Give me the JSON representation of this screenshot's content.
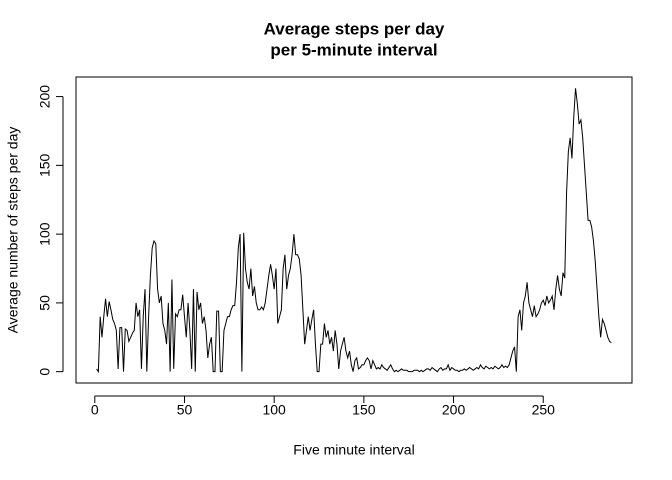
{
  "chart_data": {
    "type": "line",
    "title": [
      "Average steps per day",
      "per 5-minute interval"
    ],
    "x_label": "Five minute interval",
    "y_label": "Average number of steps per day",
    "xlim": [
      -10.48,
      299.48
    ],
    "ylim": [
      -8.24,
      214.24
    ],
    "xticks": [
      0,
      50,
      100,
      150,
      200,
      250
    ],
    "yticks": [
      0,
      50,
      100,
      150,
      200
    ],
    "x": [
      1,
      2,
      3,
      4,
      5,
      6,
      7,
      8,
      9,
      10,
      11,
      12,
      13,
      14,
      15,
      16,
      17,
      18,
      19,
      20,
      21,
      22,
      23,
      24,
      25,
      26,
      27,
      28,
      29,
      30,
      31,
      32,
      33,
      34,
      35,
      36,
      37,
      38,
      39,
      40,
      41,
      42,
      43,
      44,
      45,
      46,
      47,
      48,
      49,
      50,
      51,
      52,
      53,
      54,
      55,
      56,
      57,
      58,
      59,
      60,
      61,
      62,
      63,
      64,
      65,
      66,
      67,
      68,
      69,
      70,
      71,
      72,
      73,
      74,
      75,
      76,
      77,
      78,
      79,
      80,
      81,
      82,
      83,
      84,
      85,
      86,
      87,
      88,
      89,
      90,
      91,
      92,
      93,
      94,
      95,
      96,
      97,
      98,
      99,
      100,
      101,
      102,
      103,
      104,
      105,
      106,
      107,
      108,
      109,
      110,
      111,
      112,
      113,
      114,
      115,
      116,
      117,
      118,
      119,
      120,
      121,
      122,
      123,
      124,
      125,
      126,
      127,
      128,
      129,
      130,
      131,
      132,
      133,
      134,
      135,
      136,
      137,
      138,
      139,
      140,
      141,
      142,
      143,
      144,
      145,
      146,
      147,
      148,
      149,
      150,
      151,
      152,
      153,
      154,
      155,
      156,
      157,
      158,
      159,
      160,
      161,
      162,
      163,
      164,
      165,
      166,
      167,
      168,
      169,
      170,
      171,
      172,
      173,
      174,
      175,
      176,
      177,
      178,
      179,
      180,
      181,
      182,
      183,
      184,
      185,
      186,
      187,
      188,
      189,
      190,
      191,
      192,
      193,
      194,
      195,
      196,
      197,
      198,
      199,
      200,
      201,
      202,
      203,
      204,
      205,
      206,
      207,
      208,
      209,
      210,
      211,
      212,
      213,
      214,
      215,
      216,
      217,
      218,
      219,
      220,
      221,
      222,
      223,
      224,
      225,
      226,
      227,
      228,
      229,
      230,
      231,
      232,
      233,
      234,
      235,
      236,
      237,
      238,
      239,
      240,
      241,
      242,
      243,
      244,
      245,
      246,
      247,
      248,
      249,
      250,
      251,
      252,
      253,
      254,
      255,
      256,
      257,
      258,
      259,
      260,
      261,
      262,
      263,
      264,
      265,
      266,
      267,
      268,
      269,
      270,
      271,
      272,
      273,
      274,
      275,
      276,
      277,
      278,
      279,
      280,
      281,
      282,
      283,
      284,
      285,
      286,
      287,
      288
    ],
    "series": [
      {
        "color": "#000000",
        "values": [
          2,
          0,
          40,
          25,
          40,
          53,
          40,
          51,
          45,
          38,
          35,
          30,
          2,
          32,
          32,
          0,
          31,
          30,
          22,
          25,
          28,
          30,
          50,
          40,
          45,
          2,
          40,
          60,
          0,
          40,
          70,
          90,
          95,
          93,
          60,
          50,
          55,
          35,
          30,
          20,
          50,
          0,
          67,
          2,
          42,
          40,
          45,
          45,
          56,
          40,
          25,
          50,
          30,
          2,
          60,
          0,
          58,
          45,
          50,
          35,
          40,
          30,
          10,
          20,
          25,
          0,
          0,
          44,
          44,
          0,
          0,
          30,
          35,
          40,
          40,
          45,
          48,
          48,
          65,
          90,
          100,
          0,
          101,
          75,
          65,
          60,
          75,
          55,
          62,
          50,
          45,
          45,
          47,
          45,
          50,
          60,
          70,
          78,
          70,
          60,
          75,
          35,
          40,
          45,
          75,
          85,
          60,
          70,
          75,
          85,
          100,
          85,
          85,
          82,
          70,
          45,
          20,
          30,
          40,
          30,
          38,
          45,
          20,
          0,
          0,
          20,
          20,
          35,
          25,
          30,
          20,
          25,
          15,
          30,
          20,
          2,
          15,
          20,
          25,
          15,
          10,
          15,
          5,
          0,
          8,
          10,
          2,
          3,
          5,
          5,
          8,
          10,
          8,
          2,
          8,
          5,
          2,
          3,
          2,
          5,
          3,
          2,
          1,
          3,
          5,
          2,
          0,
          1,
          0,
          1,
          2,
          1,
          1,
          1,
          0,
          0,
          0,
          1,
          1,
          1,
          0,
          1,
          0,
          1,
          2,
          2,
          1,
          3,
          2,
          1,
          0,
          2,
          3,
          1,
          2,
          2,
          5,
          1,
          3,
          2,
          1,
          1,
          0,
          1,
          1,
          2,
          1,
          2,
          3,
          2,
          1,
          2,
          3,
          2,
          5,
          3,
          2,
          4,
          3,
          2,
          3,
          2,
          4,
          3,
          2,
          3,
          5,
          3,
          4,
          3,
          5,
          10,
          15,
          18,
          0,
          40,
          45,
          30,
          50,
          55,
          65,
          50,
          45,
          40,
          48,
          40,
          42,
          45,
          50,
          52,
          48,
          55,
          50,
          52,
          55,
          45,
          60,
          70,
          60,
          55,
          72,
          68,
          130,
          160,
          170,
          155,
          185,
          206,
          195,
          180,
          183,
          170,
          150,
          130,
          110,
          110,
          105,
          95,
          80,
          60,
          40,
          25,
          38,
          35,
          30,
          25,
          22,
          21
        ]
      }
    ]
  }
}
